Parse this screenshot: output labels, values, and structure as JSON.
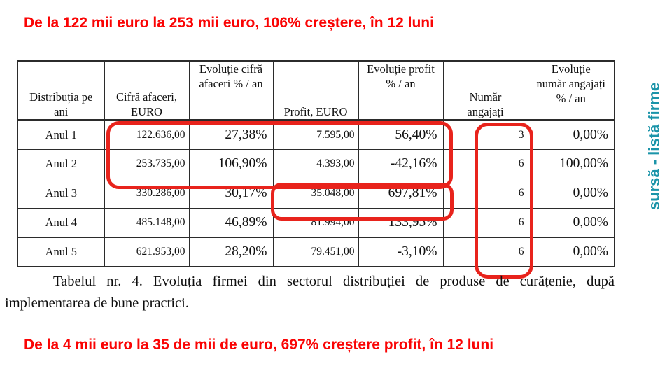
{
  "slide": {
    "title_top": "De la 122 mii euro la 253 mii euro, 106% creștere, în 12 luni",
    "title_bottom": "De la 4 mii euro la 35 de mii de euro, 697% creștere profit, în 12 luni",
    "side_label": "sursă - listă firme"
  },
  "table": {
    "headers": [
      "Distribuția pe\nani",
      "Cifră afaceri,\nEURO",
      "Evoluție cifră\nafaceri % / an",
      "Profit, EURO",
      "Evoluție profit\n% / an",
      "Număr\nangajați",
      "Evoluție\nnumăr angajați\n% / an"
    ],
    "rows": [
      [
        "Anul 1",
        "122.636,00",
        "27,38%",
        "7.595,00",
        "56,40%",
        "3",
        "0,00%"
      ],
      [
        "Anul 2",
        "253.735,00",
        "106,90%",
        "4.393,00",
        "-42,16%",
        "6",
        "100,00%"
      ],
      [
        "Anul 3",
        "330.286,00",
        "30,17%",
        "35.048,00",
        "697,81%",
        "6",
        "0,00%"
      ],
      [
        "Anul 4",
        "485.148,00",
        "46,89%",
        "81.994,00",
        "133,95%",
        "6",
        "0,00%"
      ],
      [
        "Anul 5",
        "621.953,00",
        "28,20%",
        "79.451,00",
        "-3,10%",
        "6",
        "0,00%"
      ]
    ]
  },
  "caption": {
    "line1": "Tabelul nr. 4. Evoluția firmei din sectorul distribuției de produse de curățenie, după",
    "line2": "implementarea de bune practici."
  },
  "colors": {
    "highlight_red": "#e8231c",
    "title_red": "#fa0404",
    "side_teal": "#1b94a9"
  }
}
